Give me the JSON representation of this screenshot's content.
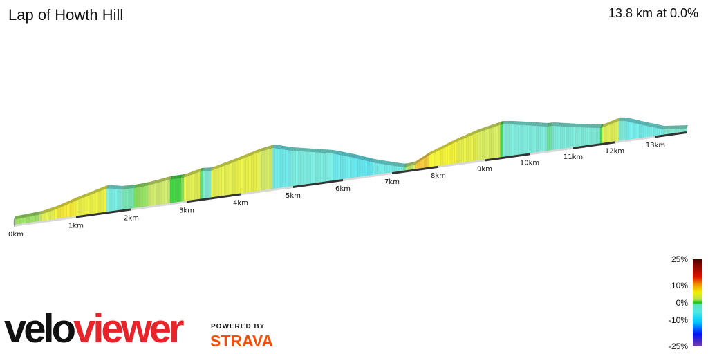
{
  "header": {
    "title": "Lap of Howth Hill",
    "summary": "13.8 km at 0.0%"
  },
  "chart_data": {
    "type": "area",
    "style": "3d elevation profile coloured by gradient",
    "title": "Lap of Howth Hill",
    "total_distance_km": 13.8,
    "x_unit": "km",
    "x_ticks": [
      "0km",
      "1km",
      "2km",
      "3km",
      "4km",
      "5km",
      "6km",
      "7km",
      "8km",
      "9km",
      "10km",
      "11km",
      "12km",
      "13km"
    ],
    "profile": [
      {
        "km": 0,
        "elev_m": 18
      },
      {
        "km": 0.44,
        "elev_m": 24
      },
      {
        "km": 0.67,
        "elev_m": 34
      },
      {
        "km": 1.0,
        "elev_m": 56
      },
      {
        "km": 1.56,
        "elev_m": 85
      },
      {
        "km": 1.81,
        "elev_m": 74
      },
      {
        "km": 2.06,
        "elev_m": 72
      },
      {
        "km": 2.31,
        "elev_m": 75
      },
      {
        "km": 2.69,
        "elev_m": 85
      },
      {
        "km": 2.94,
        "elev_m": 85
      },
      {
        "km": 3.26,
        "elev_m": 99
      },
      {
        "km": 3.45,
        "elev_m": 96
      },
      {
        "km": 3.9,
        "elev_m": 117
      },
      {
        "km": 4.36,
        "elev_m": 140
      },
      {
        "km": 4.62,
        "elev_m": 148
      },
      {
        "km": 4.95,
        "elev_m": 129
      },
      {
        "km": 5.78,
        "elev_m": 98
      },
      {
        "km": 6.2,
        "elev_m": 73
      },
      {
        "km": 6.61,
        "elev_m": 45
      },
      {
        "km": 7.04,
        "elev_m": 22
      },
      {
        "km": 7.27,
        "elev_m": 12
      },
      {
        "km": 7.49,
        "elev_m": 16
      },
      {
        "km": 7.79,
        "elev_m": 42
      },
      {
        "km": 8.39,
        "elev_m": 78
      },
      {
        "km": 8.84,
        "elev_m": 100
      },
      {
        "km": 9.37,
        "elev_m": 118
      },
      {
        "km": 9.6,
        "elev_m": 113
      },
      {
        "km": 10.38,
        "elev_m": 88
      },
      {
        "km": 10.54,
        "elev_m": 87
      },
      {
        "km": 11.02,
        "elev_m": 72
      },
      {
        "km": 11.68,
        "elev_m": 55
      },
      {
        "km": 12.1,
        "elev_m": 72
      },
      {
        "km": 12.27,
        "elev_m": 68
      },
      {
        "km": 12.78,
        "elev_m": 40
      },
      {
        "km": 13.2,
        "elev_m": 19
      },
      {
        "km": 13.8,
        "elev_m": 10
      }
    ],
    "legend": {
      "title": "",
      "labels": [
        "25%",
        "10%",
        "0%",
        "-10%",
        "-25%"
      ],
      "values": [
        25,
        10,
        0,
        -10,
        -25
      ],
      "placement": "bottom-right"
    },
    "color_scale": [
      {
        "grade": -25,
        "color": "#7a3f9c"
      },
      {
        "grade": -18,
        "color": "#0010ff"
      },
      {
        "grade": -11,
        "color": "#00c8ff"
      },
      {
        "grade": -5,
        "color": "#50e8e0"
      },
      {
        "grade": -1,
        "color": "#60e0c0"
      },
      {
        "grade": 0,
        "color": "#10c810"
      },
      {
        "grade": 2,
        "color": "#b8e050"
      },
      {
        "grade": 6,
        "color": "#f0f000"
      },
      {
        "grade": 10,
        "color": "#f0a000"
      },
      {
        "grade": 15,
        "color": "#e01000"
      },
      {
        "grade": 25,
        "color": "#500000"
      }
    ]
  },
  "branding": {
    "logo_part1": "velo",
    "logo_part2": "viewer",
    "powered_by": "POWERED BY",
    "strava": "STRAVA",
    "colors": {
      "viewer": "#e8232a",
      "strava": "#fc4c02"
    }
  }
}
